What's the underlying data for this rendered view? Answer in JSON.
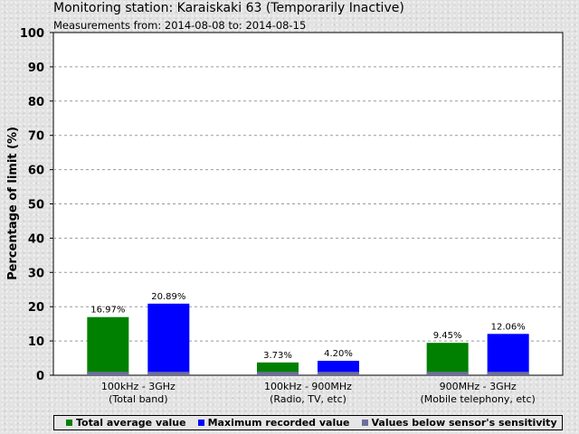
{
  "header": {
    "title": "Monitoring station: Karaiskaki 63 (Temporarily Inactive)",
    "subtitle": "Measurements from: 2014-08-08 to: 2014-08-15"
  },
  "chart_data": {
    "type": "bar",
    "title": "Monitoring station: Karaiskaki 63 (Temporarily Inactive)",
    "subtitle": "Measurements from: 2014-08-08 to: 2014-08-15",
    "ylabel": "Percentage of limit (%)",
    "xlabel": "",
    "ylim": [
      0,
      100
    ],
    "yticks": [
      0,
      10,
      20,
      30,
      40,
      50,
      60,
      70,
      80,
      90,
      100
    ],
    "grid": true,
    "legend_position": "bottom",
    "categories": [
      [
        "100kHz - 3GHz",
        "(Total band)"
      ],
      [
        "100kHz - 900MHz",
        "(Radio, TV, etc)"
      ],
      [
        "900MHz - 3GHz",
        "(Mobile telephony, etc)"
      ]
    ],
    "series": [
      {
        "name": "Total average value",
        "color": "#008000",
        "values": [
          16.97,
          3.73,
          9.45
        ],
        "labels": [
          "16.97%",
          "3.73%",
          "9.45%"
        ]
      },
      {
        "name": "Maximum recorded value",
        "color": "#0000ff",
        "values": [
          20.89,
          4.2,
          12.06
        ],
        "labels": [
          "20.89%",
          "4.20%",
          "12.06%"
        ]
      }
    ],
    "sensitivity": {
      "name": "Values below sensor's sensitivity",
      "color": "#6e6e9e",
      "value": 1
    }
  }
}
